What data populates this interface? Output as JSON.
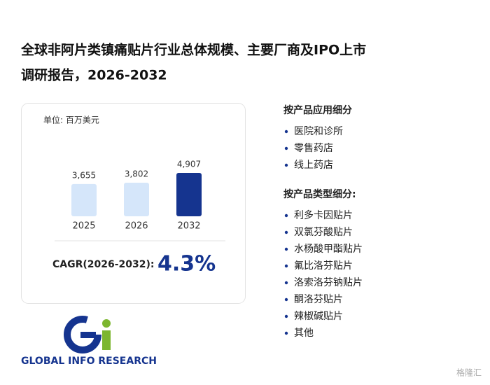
{
  "header": {
    "title_lines": [
      "全球非阿片类镇痛贴片行业总体规模、主要厂商及IPO上市",
      "调研报告，2026-2032"
    ]
  },
  "chart_data": {
    "type": "bar",
    "unit": "单位: 百万美元",
    "categories": [
      "2025",
      "2026",
      "2032"
    ],
    "values": [
      3655,
      3802,
      4907
    ],
    "value_labels": [
      "3,655",
      "3,802",
      "4,907"
    ],
    "colors": [
      "#d5e6fa",
      "#d5e6fa",
      "#15348f"
    ]
  },
  "cagr": {
    "label": "CAGR(2026-2032):",
    "value": "4.3%"
  },
  "segments": [
    {
      "heading": "按产品应用细分",
      "items": [
        "医院和诊所",
        "零售药店",
        "线上药店"
      ]
    },
    {
      "heading": "按产品类型细分:",
      "items": [
        "利多卡因贴片",
        "双氯芬酸贴片",
        "水杨酸甲酯贴片",
        "氟比洛芬贴片",
        "洛索洛芬钠贴片",
        "酮洛芬贴片",
        "辣椒碱贴片",
        "其他"
      ]
    }
  ],
  "logo": {
    "text": "GLOBAL INFO RESEARCH"
  },
  "watermark": "格隆汇"
}
